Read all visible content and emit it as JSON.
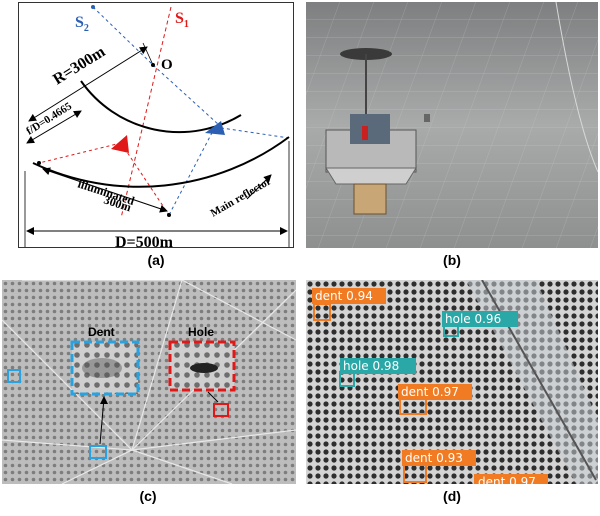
{
  "panel_a": {
    "source1": "S",
    "source1_sub": "1",
    "source2": "S",
    "source2_sub": "2",
    "origin": "O",
    "radius": "R=300m",
    "focal_ratio": "f/D=0.4665",
    "illuminated_line1": "illuminated",
    "illuminated_line2": "300m",
    "main_reflector": "Main reflector",
    "diameter": "D=500m",
    "colors": {
      "s1": "#e01818",
      "s2": "#2b5fb3"
    }
  },
  "panel_c": {
    "dent_label": "Dent",
    "hole_label": "Hole",
    "colors": {
      "dent": "#29a3e0",
      "hole": "#e01818"
    }
  },
  "panel_d": {
    "detections": [
      {
        "label": "dent 0.94",
        "class": "dent"
      },
      {
        "label": "hole 0.96",
        "class": "hole"
      },
      {
        "label": "hole 0.98",
        "class": "hole"
      },
      {
        "label": "dent 0.97",
        "class": "dent"
      },
      {
        "label": "dent 0.93",
        "class": "dent"
      },
      {
        "label": "dent 0.97",
        "class": "dent"
      }
    ],
    "colors": {
      "dent": "#f07b22",
      "hole": "#2aa7a7"
    }
  },
  "captions": {
    "a": "(a)",
    "b": "(b)",
    "c": "(c)",
    "d": "(d)"
  }
}
